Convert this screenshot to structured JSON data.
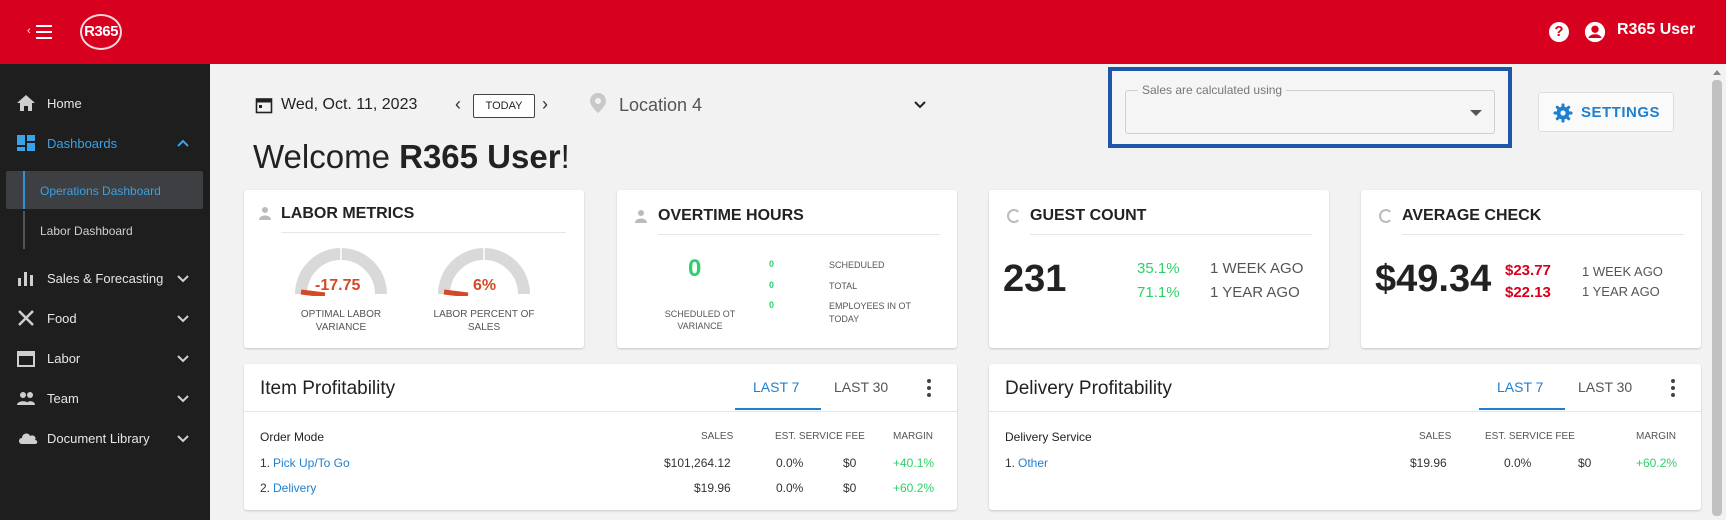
{
  "header": {
    "logo_text": "R365",
    "help_icon": "question-circle-icon",
    "user_icon": "account-circle-icon",
    "user_name": "R365 User"
  },
  "sidebar": {
    "items": [
      {
        "label": "Home",
        "icon": "home-icon"
      },
      {
        "label": "Dashboards",
        "icon": "dashboard-icon",
        "expanded": true
      },
      {
        "label": "Sales & Forecasting",
        "icon": "bar-chart-icon"
      },
      {
        "label": "Food",
        "icon": "utensils-icon"
      },
      {
        "label": "Labor",
        "icon": "calendar-icon"
      },
      {
        "label": "Team",
        "icon": "people-icon"
      },
      {
        "label": "Document Library",
        "icon": "cloud-icon"
      }
    ],
    "dashboards_sub": [
      {
        "label": "Operations Dashboard",
        "selected": true
      },
      {
        "label": "Labor Dashboard",
        "selected": false
      }
    ]
  },
  "toolbar": {
    "date": "Wed, Oct. 11, 2023",
    "prev": "‹",
    "today": "TODAY",
    "next": "›",
    "location": "Location 4",
    "sales_label": "Sales are calculated using",
    "sales_value": "",
    "settings": "SETTINGS"
  },
  "welcome": {
    "prefix": "Welcome ",
    "name": "R365 User",
    "suffix": "!"
  },
  "labor_metrics": {
    "title": "LABOR METRICS",
    "gauges": [
      {
        "value": "-17.75",
        "label": "OPTIMAL LABOR VARIANCE"
      },
      {
        "value": "6%",
        "label": "LABOR PERCENT OF SALES"
      }
    ]
  },
  "overtime": {
    "title": "OVERTIME HOURS",
    "main_value": "0",
    "main_label": "SCHEDULED OT VARIANCE",
    "rows": [
      {
        "value": "0",
        "label": "SCHEDULED"
      },
      {
        "value": "0",
        "label": "TOTAL"
      },
      {
        "value": "0",
        "label": "EMPLOYEES IN OT TODAY"
      }
    ]
  },
  "guest_count": {
    "title": "GUEST COUNT",
    "value": "231",
    "comparisons": [
      {
        "pct": "35.1%",
        "label": "1 WEEK AGO"
      },
      {
        "pct": "71.1%",
        "label": "1 YEAR AGO"
      }
    ]
  },
  "average_check": {
    "title": "AVERAGE CHECK",
    "value": "$49.34",
    "comparisons": [
      {
        "amount": "$23.77",
        "label": "1 WEEK AGO"
      },
      {
        "amount": "$22.13",
        "label": "1 YEAR AGO"
      }
    ]
  },
  "item_profitability": {
    "title": "Item Profitability",
    "tabs": [
      "LAST 7",
      "LAST 30"
    ],
    "columns": [
      "Order Mode",
      "SALES",
      "EST. SERVICE FEE",
      "MARGIN"
    ],
    "rows": [
      {
        "num": "1.",
        "name": "Pick Up/To Go",
        "sales": "$101,264.12",
        "fee_pct": "0.0%",
        "fee": "$0",
        "margin": "+40.1%"
      },
      {
        "num": "2.",
        "name": "Delivery",
        "sales": "$19.96",
        "fee_pct": "0.0%",
        "fee": "$0",
        "margin": "+60.2%"
      }
    ]
  },
  "delivery_profitability": {
    "title": "Delivery Profitability",
    "tabs": [
      "LAST 7",
      "LAST 30"
    ],
    "columns": [
      "Delivery Service",
      "SALES",
      "EST. SERVICE FEE",
      "MARGIN"
    ],
    "rows": [
      {
        "num": "1.",
        "name": "Other",
        "sales": "$19.96",
        "fee_pct": "0.0%",
        "fee": "$0",
        "margin": "+60.2%"
      }
    ]
  },
  "colors": {
    "brand_red": "#d7001e",
    "accent_blue": "#1f7fd0",
    "positive_green": "#2fcf6b",
    "gauge_orange": "#d44a27",
    "highlight_border": "#1f57a8"
  }
}
